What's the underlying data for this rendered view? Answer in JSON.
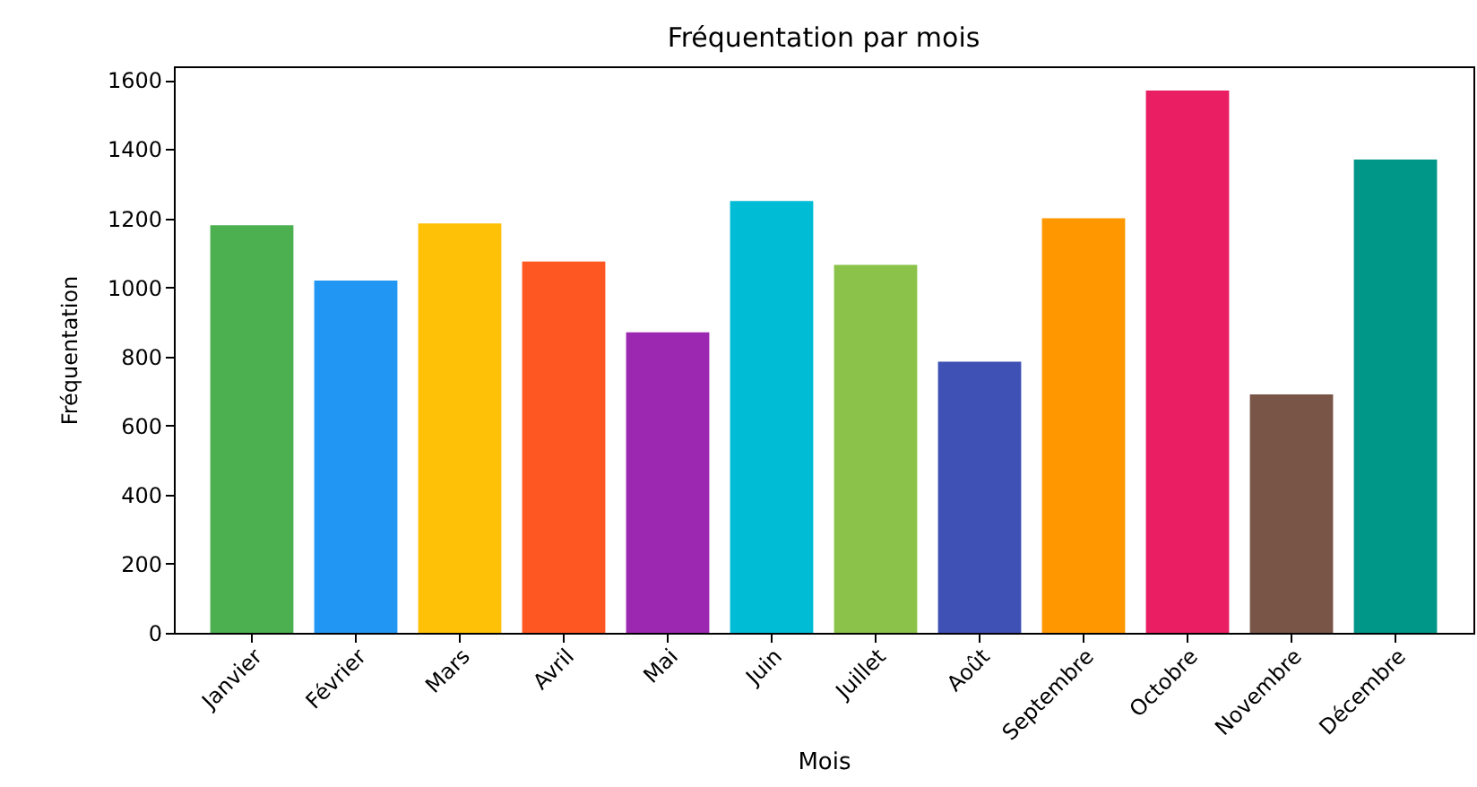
{
  "chart_data": {
    "type": "bar",
    "title": "Fréquentation par mois",
    "xlabel": "Mois",
    "ylabel": "Fréquentation",
    "categories": [
      "Janvier",
      "Février",
      "Mars",
      "Avril",
      "Mai",
      "Juin",
      "Juillet",
      "Août",
      "Septembre",
      "Octobre",
      "Novembre",
      "Décembre"
    ],
    "values": [
      1180,
      1020,
      1185,
      1075,
      870,
      1250,
      1065,
      785,
      1200,
      1570,
      690,
      1370
    ],
    "colors": [
      "#4caf50",
      "#2196f3",
      "#ffc107",
      "#ff5722",
      "#9c27b0",
      "#00bcd4",
      "#8bc34a",
      "#3f51b5",
      "#ff9800",
      "#e91e63",
      "#795548",
      "#009688"
    ],
    "ylim": [
      0,
      1640
    ],
    "yticks": [
      0,
      200,
      400,
      600,
      800,
      1000,
      1200,
      1400,
      1600
    ],
    "grid": false
  }
}
